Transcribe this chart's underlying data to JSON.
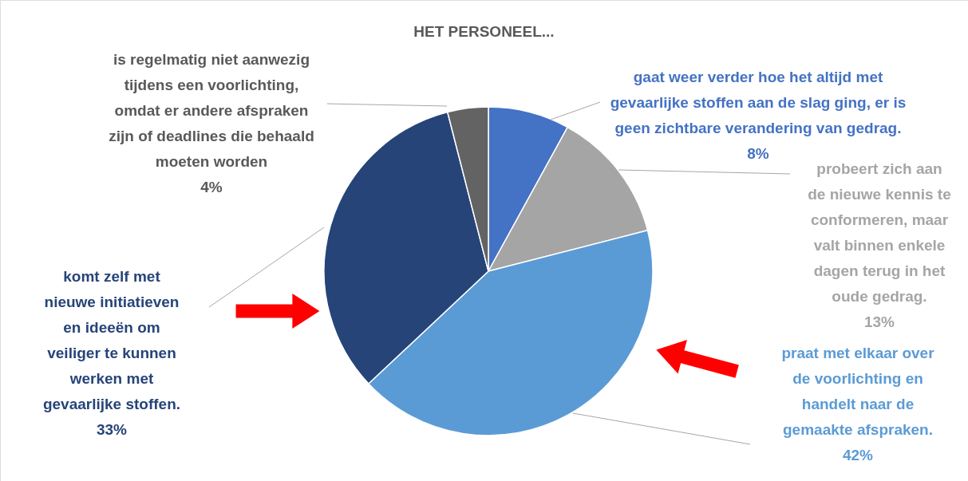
{
  "chart_data": {
    "type": "pie",
    "title": "HET PERSONEEL...",
    "categories": [
      "gaat weer verder hoe het altijd met gevaarlijke stoffen aan de slag ging, er is geen zichtbare verandering van gedrag.",
      "probeert zich aan de nieuwe kennis te conformeren, maar valt binnen enkele dagen terug in het oude gedrag.",
      "praat met elkaar over de voorlichting en handelt naar de gemaakte afspraken.",
      "komt zelf met nieuwe initiatieven en ideeën om veiliger te kunnen werken met gevaarlijke stoffen.",
      "is regelmatig niet aanwezig tijdens een voorlichting, omdat er andere afspraken zijn of deadlines die behaald moeten worden"
    ],
    "values": [
      8,
      13,
      42,
      33,
      4
    ],
    "colors": [
      "#4472c4",
      "#a5a5a5",
      "#5b9bd5",
      "#264478",
      "#636363"
    ],
    "value_labels": [
      "8%",
      "13%",
      "42%",
      "33%",
      "4%"
    ],
    "legend": false
  }
}
